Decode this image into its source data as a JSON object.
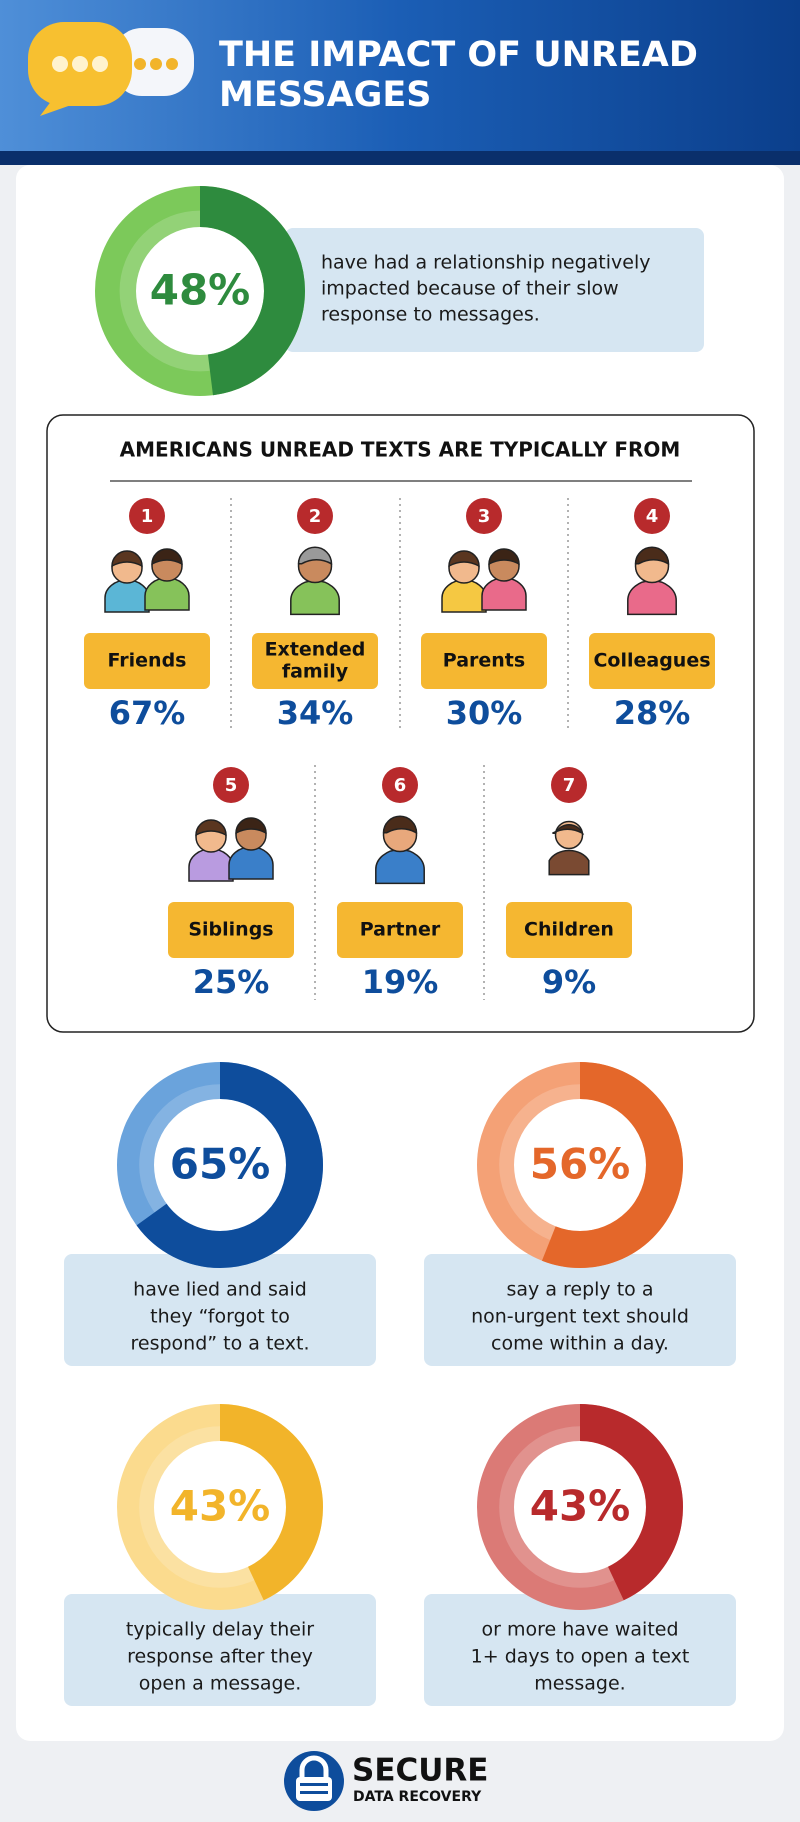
{
  "header": {
    "title": [
      "THE IMPACT OF UNREAD",
      "MESSAGES"
    ]
  },
  "stats": [
    {
      "value": 48,
      "value_label": "48%",
      "color": "#2e8b3e",
      "track_color": "#7cc95a",
      "lines": [
        "have had a relationship negatively",
        "impacted because of their slow",
        "response to messages."
      ]
    },
    {
      "value": 65,
      "value_label": "65%",
      "color": "#0e4d9c",
      "track_color": "#6aa3dc",
      "lines": [
        "have lied and said",
        "they “forgot to",
        "respond” to a text."
      ]
    },
    {
      "value": 56,
      "value_label": "56%",
      "color": "#e4672a",
      "track_color": "#f4a176",
      "lines": [
        "say a reply to a",
        "non-urgent text should",
        "come within a day."
      ]
    },
    {
      "value": 43,
      "value_label": "43%",
      "color": "#f2b42a",
      "track_color": "#fbdb8e",
      "lines": [
        "typically delay their",
        "response after they",
        "open a message."
      ]
    },
    {
      "value": 43,
      "value_label": "43%",
      "color": "#b82a2c",
      "track_color": "#db7a76",
      "lines": [
        "or more have waited",
        "1+ days to open a text",
        "message."
      ]
    }
  ],
  "sources": {
    "title": "AMERICANS UNREAD TEXTS ARE TYPICALLY FROM",
    "items": [
      {
        "rank": 1,
        "name": [
          "Friends"
        ],
        "value": 67,
        "value_label": "67%"
      },
      {
        "rank": 2,
        "name": [
          "Extended",
          "family"
        ],
        "value": 34,
        "value_label": "34%"
      },
      {
        "rank": 3,
        "name": [
          "Parents"
        ],
        "value": 30,
        "value_label": "30%"
      },
      {
        "rank": 4,
        "name": [
          "Colleagues"
        ],
        "value": 28,
        "value_label": "28%"
      },
      {
        "rank": 5,
        "name": [
          "Siblings"
        ],
        "value": 25,
        "value_label": "25%"
      },
      {
        "rank": 6,
        "name": [
          "Partner"
        ],
        "value": 19,
        "value_label": "19%"
      },
      {
        "rank": 7,
        "name": [
          "Children"
        ],
        "value": 9,
        "value_label": "9%"
      }
    ]
  },
  "footer": {
    "brand": "SECURE",
    "tagline": "DATA RECOVERY"
  }
}
